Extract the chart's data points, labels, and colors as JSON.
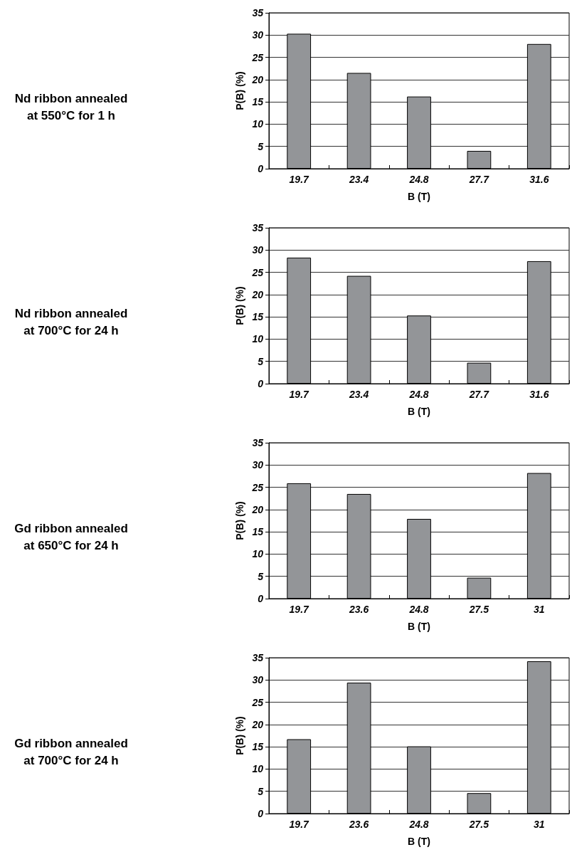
{
  "chart_data": [
    {
      "type": "bar",
      "annotations": [
        "Nd ribbon annealed at 550°C for 1 h"
      ],
      "xlabel": "B (T)",
      "ylabel": "P(B) (%)",
      "categories": [
        "19.7",
        "23.4",
        "24.8",
        "27.7",
        "31.6"
      ],
      "values": [
        30.3,
        21.5,
        16.2,
        4.0,
        28.0
      ],
      "color": "#939598",
      "ylim": [
        0,
        35
      ],
      "yticks": [
        0,
        5,
        10,
        15,
        20,
        25,
        30,
        35
      ],
      "grid": true
    },
    {
      "type": "bar",
      "annotations": [
        "Nd ribbon annealed at 700°C for 24 h"
      ],
      "xlabel": "B (T)",
      "ylabel": "P(B) (%)",
      "categories": [
        "19.7",
        "23.4",
        "24.8",
        "27.7",
        "31.6"
      ],
      "values": [
        28.3,
        24.2,
        15.3,
        4.7,
        27.5
      ],
      "color": "#939598",
      "ylim": [
        0,
        35
      ],
      "yticks": [
        0,
        5,
        10,
        15,
        20,
        25,
        30,
        35
      ],
      "grid": true
    },
    {
      "type": "bar",
      "annotations": [
        "Gd ribbon annealed at 650°C for 24 h"
      ],
      "xlabel": "B (T)",
      "ylabel": "P(B) (%)",
      "categories": [
        "19.7",
        "23.6",
        "24.8",
        "27.5",
        "31"
      ],
      "values": [
        25.9,
        23.5,
        17.9,
        4.7,
        28.2
      ],
      "color": "#939598",
      "ylim": [
        0,
        35
      ],
      "yticks": [
        0,
        5,
        10,
        15,
        20,
        25,
        30,
        35
      ],
      "grid": true
    },
    {
      "type": "bar",
      "annotations": [
        "Gd ribbon annealed at 700°C for 24 h"
      ],
      "xlabel": "B (T)",
      "ylabel": "P(B) (%)",
      "categories": [
        "19.7",
        "23.6",
        "24.8",
        "27.5",
        "31"
      ],
      "values": [
        16.7,
        29.4,
        15.1,
        4.6,
        34.2
      ],
      "color": "#939598",
      "ylim": [
        0,
        35
      ],
      "yticks": [
        0,
        5,
        10,
        15,
        20,
        25,
        30,
        35
      ],
      "grid": true
    }
  ]
}
